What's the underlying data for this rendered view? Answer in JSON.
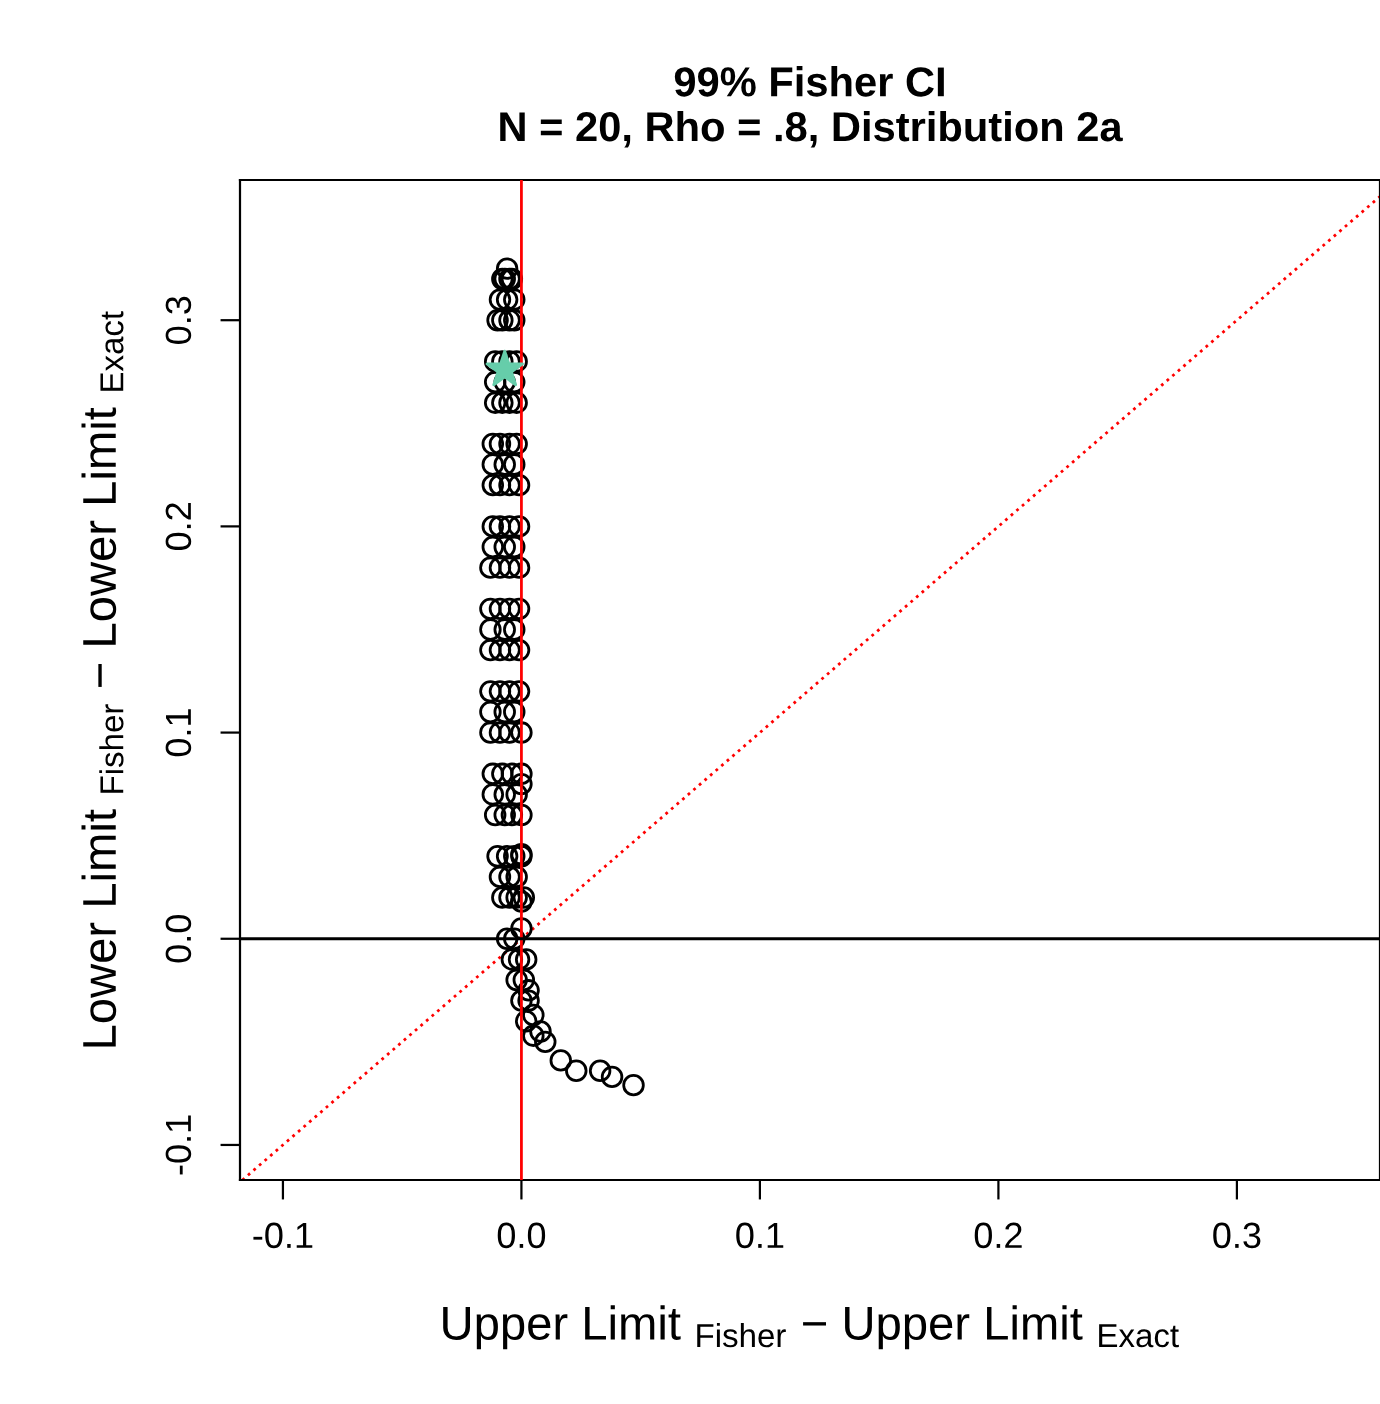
{
  "chart_data": {
    "type": "scatter",
    "title": "99% Fisher CI\nN = 20, Rho = .8, Distribution 2a",
    "xlabel": "Upper Limit $_{Fisher}$ − Upper Limit $_{Exact}$",
    "ylabel": "Lower Limit $_{Fisher}$ − Lower Limit $_{Exact}$",
    "xlim": [
      -0.118,
      0.36
    ],
    "ylim": [
      -0.117,
      0.368
    ],
    "xticks": [
      -0.1,
      {
        "value": 0,
        "label": "0.0"
      },
      0.1,
      0.2,
      0.3
    ],
    "yticks": [
      -0.1,
      {
        "value": 0,
        "label": "0.0"
      },
      0.1,
      0.2,
      0.3
    ],
    "grid": false,
    "legend": false,
    "ref_lines": [
      {
        "axis": "x",
        "value": 0,
        "color": "#ff0000",
        "line_style": "solid"
      },
      {
        "axis": "y",
        "value": 0,
        "color": "#000000",
        "line_style": "solid"
      }
    ],
    "series": [
      {
        "marker": "circle",
        "color": "#000000",
        "x": [
          -0.006,
          -0.008,
          -0.007,
          -0.005,
          -0.004,
          -0.01,
          -0.008,
          -0.005,
          -0.003,
          -0.011,
          -0.008,
          -0.005,
          -0.002,
          -0.011,
          -0.008,
          -0.005,
          -0.002,
          -0.012,
          -0.009,
          -0.005,
          -0.002,
          -0.012,
          -0.009,
          -0.005,
          -0.001,
          -0.012,
          -0.009,
          -0.005,
          -0.001,
          -0.013,
          -0.009,
          -0.005,
          -0.001,
          -0.013,
          -0.009,
          -0.005,
          -0.001,
          -0.013,
          -0.009,
          -0.005,
          -0.001,
          -0.013,
          -0.009,
          -0.005,
          -0.001,
          -0.013,
          -0.009,
          -0.005,
          0.0,
          -0.012,
          -0.008,
          -0.004,
          0.0,
          -0.011,
          -0.007,
          -0.004,
          0.0,
          -0.01,
          -0.006,
          -0.003,
          0.0,
          -0.008,
          -0.005,
          -0.002,
          0.001,
          -0.009,
          -0.006,
          -0.003,
          -0.011,
          -0.007,
          -0.003,
          -0.012,
          -0.007,
          -0.003,
          -0.012,
          -0.007,
          -0.003,
          -0.013,
          -0.007,
          -0.003,
          -0.013,
          -0.007,
          -0.003,
          -0.012,
          -0.007,
          -0.002,
          -0.009,
          -0.005,
          -0.002,
          -0.006,
          -0.003,
          0.0,
          -0.004,
          -0.001,
          0.002,
          -0.002,
          0.001,
          0.003,
          0.0,
          0.003,
          0.002,
          0.005,
          0.005,
          0.008,
          0.0,
          0.0,
          0.0,
          0.01,
          0.0165,
          0.023,
          0.033,
          0.038,
          0.047
        ],
        "values": [
          0.325,
          0.32,
          0.32,
          0.32,
          0.32,
          0.3,
          0.3,
          0.3,
          0.3,
          0.28,
          0.28,
          0.28,
          0.28,
          0.26,
          0.26,
          0.26,
          0.26,
          0.24,
          0.24,
          0.24,
          0.24,
          0.22,
          0.22,
          0.22,
          0.22,
          0.2,
          0.2,
          0.2,
          0.2,
          0.18,
          0.18,
          0.18,
          0.18,
          0.16,
          0.16,
          0.16,
          0.16,
          0.14,
          0.14,
          0.14,
          0.14,
          0.12,
          0.12,
          0.12,
          0.12,
          0.1,
          0.1,
          0.1,
          0.1,
          0.08,
          0.08,
          0.08,
          0.08,
          0.06,
          0.06,
          0.06,
          0.06,
          0.04,
          0.04,
          0.04,
          0.04,
          0.02,
          0.02,
          0.02,
          0.02,
          0.31,
          0.31,
          0.31,
          0.27,
          0.27,
          0.27,
          0.23,
          0.23,
          0.23,
          0.19,
          0.19,
          0.19,
          0.15,
          0.15,
          0.15,
          0.11,
          0.11,
          0.11,
          0.07,
          0.07,
          0.07,
          0.03,
          0.03,
          0.03,
          0.0,
          0.0,
          0.005,
          -0.01,
          -0.01,
          -0.01,
          -0.02,
          -0.02,
          -0.025,
          -0.03,
          -0.03,
          -0.04,
          -0.037,
          -0.047,
          -0.045,
          0.075,
          0.041,
          0.018,
          -0.05,
          -0.059,
          -0.064,
          -0.064,
          -0.067,
          -0.071
        ]
      },
      {
        "marker": "star",
        "color": "#66cdaa",
        "x": [
          -0.007
        ],
        "values": [
          0.276
        ]
      },
      {
        "type": "line",
        "line_style": "dotted",
        "color": "#ff0000",
        "x": [
          -0.117,
          0.36
        ],
        "values": [
          -0.117,
          0.36
        ]
      }
    ]
  }
}
